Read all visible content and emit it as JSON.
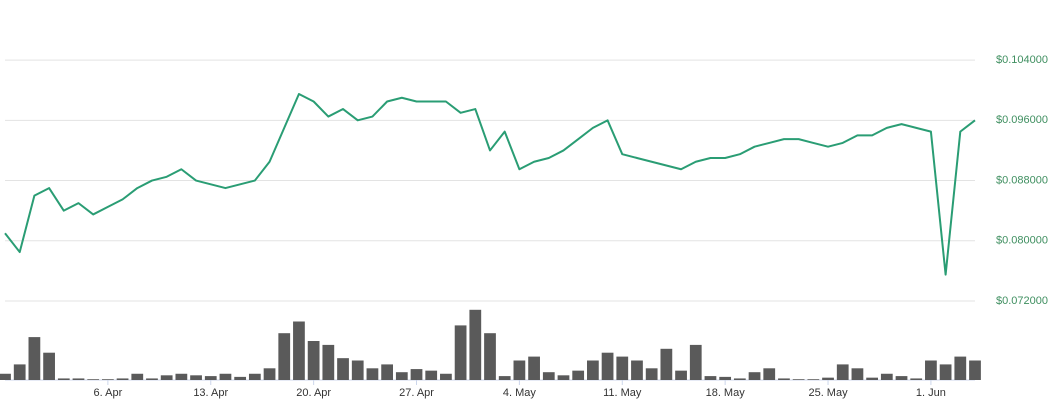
{
  "chart_data": {
    "type": "line",
    "categories": [
      null,
      null,
      null,
      null,
      null,
      null,
      null,
      "6. Apr",
      null,
      null,
      null,
      null,
      null,
      null,
      "13. Apr",
      null,
      null,
      null,
      null,
      null,
      null,
      "20. Apr",
      null,
      null,
      null,
      null,
      null,
      null,
      "27. Apr",
      null,
      null,
      null,
      null,
      null,
      null,
      "4. May",
      null,
      null,
      null,
      null,
      null,
      null,
      "11. May",
      null,
      null,
      null,
      null,
      null,
      null,
      "18. May",
      null,
      null,
      null,
      null,
      null,
      null,
      "25. May",
      null,
      null,
      null,
      null,
      null,
      null,
      "1. Jun",
      null,
      null,
      null
    ],
    "series": [
      {
        "type": "line",
        "color": "#2a9d74",
        "values": [
          0.081,
          0.0785,
          0.086,
          0.087,
          0.084,
          0.085,
          0.0835,
          0.0845,
          0.0855,
          0.087,
          0.088,
          0.0885,
          0.0895,
          0.088,
          0.0875,
          0.087,
          0.0875,
          0.088,
          0.0905,
          0.095,
          0.0995,
          0.0985,
          0.0965,
          0.0975,
          0.096,
          0.0965,
          0.0985,
          0.099,
          0.0985,
          0.0985,
          0.0985,
          0.097,
          0.0975,
          0.092,
          0.0945,
          0.0895,
          0.0905,
          0.091,
          0.092,
          0.0935,
          0.095,
          0.096,
          0.0915,
          0.091,
          0.0905,
          0.09,
          0.0895,
          0.0905,
          0.091,
          0.091,
          0.0915,
          0.0925,
          0.093,
          0.0935,
          0.0935,
          0.093,
          0.0925,
          0.093,
          0.094,
          0.094,
          0.095,
          0.0955,
          0.095,
          0.0945,
          0.0755,
          0.0945,
          0.096
        ]
      },
      {
        "type": "bar",
        "axis": "y2",
        "color": "#5a5a5a",
        "values": [
          8,
          20,
          55,
          35,
          2,
          2,
          1,
          1,
          2,
          8,
          2,
          6,
          8,
          6,
          5,
          8,
          4,
          8,
          15,
          60,
          75,
          50,
          45,
          28,
          25,
          15,
          20,
          10,
          14,
          12,
          8,
          70,
          90,
          60,
          5,
          25,
          30,
          10,
          6,
          12,
          25,
          35,
          30,
          25,
          15,
          40,
          12,
          45,
          5,
          4,
          2,
          10,
          15,
          2,
          1,
          1,
          3,
          20,
          15,
          3,
          8,
          5,
          2,
          25,
          20,
          30,
          25
        ]
      }
    ],
    "ylim": [
      0.072,
      0.108
    ],
    "yticks": [
      {
        "value": 0.072,
        "label": "$0.072000"
      },
      {
        "value": 0.08,
        "label": "$0.080000"
      },
      {
        "value": 0.088,
        "label": "$0.088000"
      },
      {
        "value": 0.096,
        "label": "$0.096000"
      },
      {
        "value": 0.104,
        "label": "$0.104000"
      }
    ],
    "y2lim": [
      0,
      100
    ],
    "grid": true
  }
}
